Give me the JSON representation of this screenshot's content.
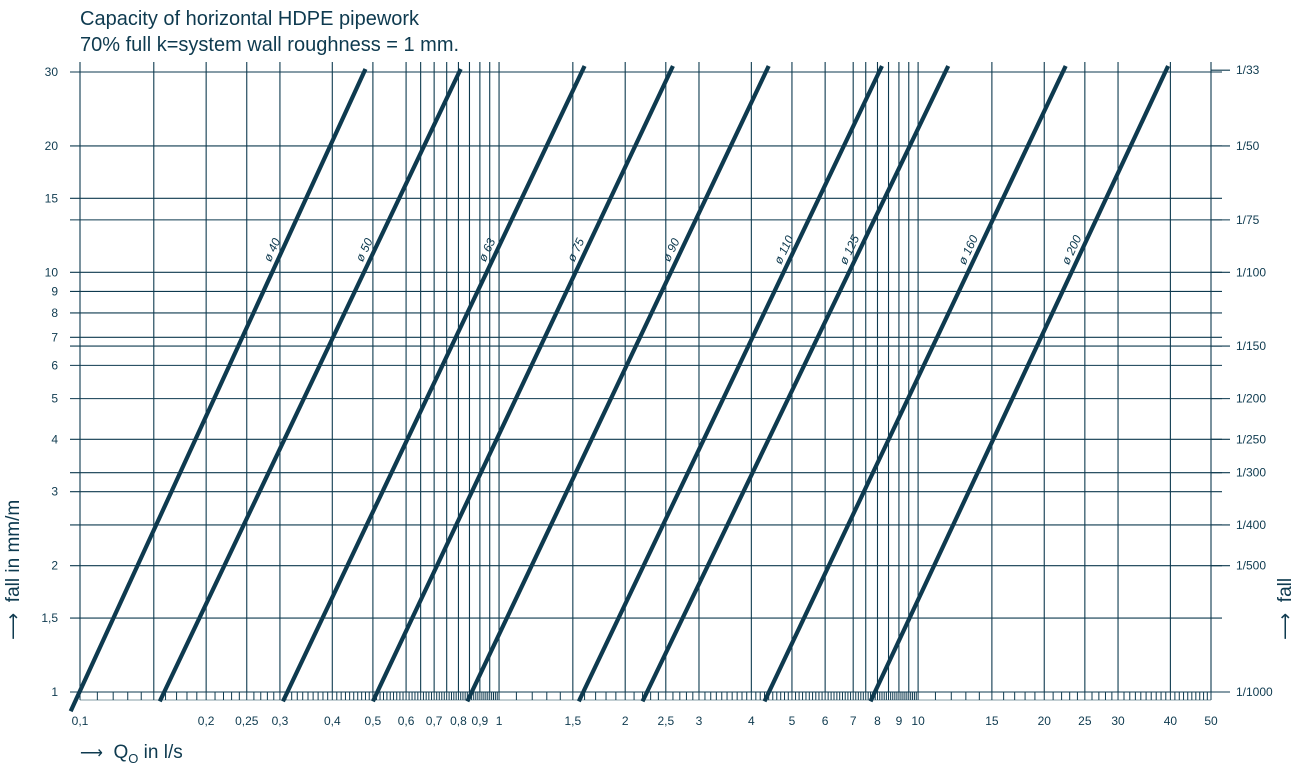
{
  "colors": {
    "line": "#0e3a4f",
    "grid": "#0e3a4f",
    "background": "#ffffff"
  },
  "title": {
    "line1": "Capacity of horizontal HDPE pipework",
    "line2": "70% full  k=system wall roughness = 1 mm."
  },
  "axes": {
    "ylabel_left": "fall in mm/m",
    "ylabel_right": "fall",
    "xlabel_prefix": "Q",
    "xlabel_sub": "O",
    "xlabel_suffix": " in l/s",
    "arrow": "⟶",
    "up_arrow": "⟶"
  },
  "chart_data": {
    "type": "line",
    "xscale": "log",
    "yscale": "log",
    "xlim": [
      0.1,
      50
    ],
    "ylim": [
      1,
      30
    ],
    "grid": true,
    "x_major_ticks": [
      {
        "v": 0.1,
        "label": "0,1"
      },
      {
        "v": 0.2,
        "label": "0,2"
      },
      {
        "v": 0.25,
        "label": "0,25"
      },
      {
        "v": 0.3,
        "label": "0,3"
      },
      {
        "v": 0.4,
        "label": "0,4"
      },
      {
        "v": 0.5,
        "label": "0,5"
      },
      {
        "v": 0.6,
        "label": "0,6"
      },
      {
        "v": 0.7,
        "label": "0,7"
      },
      {
        "v": 0.8,
        "label": "0,8"
      },
      {
        "v": 0.9,
        "label": "0,9"
      },
      {
        "v": 1,
        "label": "1"
      },
      {
        "v": 1.5,
        "label": "1,5"
      },
      {
        "v": 2,
        "label": "2"
      },
      {
        "v": 2.5,
        "label": "2,5"
      },
      {
        "v": 3,
        "label": "3"
      },
      {
        "v": 4,
        "label": "4"
      },
      {
        "v": 5,
        "label": "5"
      },
      {
        "v": 6,
        "label": "6"
      },
      {
        "v": 7,
        "label": "7"
      },
      {
        "v": 8,
        "label": "8"
      },
      {
        "v": 9,
        "label": "9"
      },
      {
        "v": 10,
        "label": "10"
      },
      {
        "v": 15,
        "label": "15"
      },
      {
        "v": 20,
        "label": "20"
      },
      {
        "v": 25,
        "label": "25"
      },
      {
        "v": 30,
        "label": "30"
      },
      {
        "v": 40,
        "label": "40"
      },
      {
        "v": 50,
        "label": "50"
      }
    ],
    "x_gridlines": [
      0.1,
      0.15,
      0.2,
      0.25,
      0.3,
      0.4,
      0.5,
      0.6,
      0.65,
      0.7,
      0.75,
      0.8,
      0.85,
      0.9,
      0.95,
      1,
      1.5,
      2,
      2.5,
      3,
      4,
      5,
      6,
      7,
      7.5,
      8,
      8.5,
      9,
      9.5,
      10,
      15,
      20,
      25,
      30,
      40,
      50
    ],
    "y_ticks": [
      {
        "v": 1,
        "label": "1"
      },
      {
        "v": 1.5,
        "label": "1,5"
      },
      {
        "v": 2,
        "label": "2"
      },
      {
        "v": 3,
        "label": "3"
      },
      {
        "v": 4,
        "label": "4"
      },
      {
        "v": 5,
        "label": "5"
      },
      {
        "v": 6,
        "label": "6"
      },
      {
        "v": 7,
        "label": "7"
      },
      {
        "v": 8,
        "label": "8"
      },
      {
        "v": 9,
        "label": "9"
      },
      {
        "v": 10,
        "label": "10"
      },
      {
        "v": 15,
        "label": "15"
      },
      {
        "v": 20,
        "label": "20"
      },
      {
        "v": 30,
        "label": "30"
      }
    ],
    "y_gridlines": [
      1,
      1.5,
      2,
      2.5,
      3,
      3.33,
      4,
      5,
      6,
      6.67,
      7,
      8,
      9,
      10,
      13.33,
      15,
      20,
      30
    ],
    "right_ticks": [
      {
        "v": 30.3,
        "label": "1/33"
      },
      {
        "v": 20,
        "label": "1/50"
      },
      {
        "v": 13.33,
        "label": "1/75"
      },
      {
        "v": 10,
        "label": "1/100"
      },
      {
        "v": 6.67,
        "label": "1/150"
      },
      {
        "v": 5,
        "label": "1/200"
      },
      {
        "v": 4,
        "label": "1/250"
      },
      {
        "v": 3.33,
        "label": "1/300"
      },
      {
        "v": 2.5,
        "label": "1/400"
      },
      {
        "v": 2,
        "label": "1/500"
      },
      {
        "v": 1,
        "label": "1/1000"
      }
    ],
    "series": [
      {
        "name": "ø 40",
        "points": [
          [
            0.095,
            0.9
          ],
          [
            0.48,
            30.5
          ]
        ]
      },
      {
        "name": "ø 50",
        "points": [
          [
            0.155,
            0.95
          ],
          [
            0.81,
            30.5
          ]
        ]
      },
      {
        "name": "ø 63",
        "points": [
          [
            0.305,
            0.95
          ],
          [
            1.6,
            31
          ]
        ]
      },
      {
        "name": "ø 75",
        "points": [
          [
            0.5,
            0.95
          ],
          [
            2.6,
            31
          ]
        ]
      },
      {
        "name": "ø 90",
        "points": [
          [
            0.84,
            0.95
          ],
          [
            4.4,
            31
          ]
        ]
      },
      {
        "name": "ø 110",
        "points": [
          [
            1.55,
            0.95
          ],
          [
            8.2,
            31
          ]
        ]
      },
      {
        "name": "ø 125",
        "points": [
          [
            2.2,
            0.95
          ],
          [
            11.8,
            31
          ]
        ]
      },
      {
        "name": "ø 160",
        "points": [
          [
            4.3,
            0.95
          ],
          [
            22.5,
            31
          ]
        ]
      },
      {
        "name": "ø 200",
        "points": [
          [
            7.7,
            0.95
          ],
          [
            39.5,
            31
          ]
        ]
      }
    ],
    "series_label_y": 11.2
  }
}
